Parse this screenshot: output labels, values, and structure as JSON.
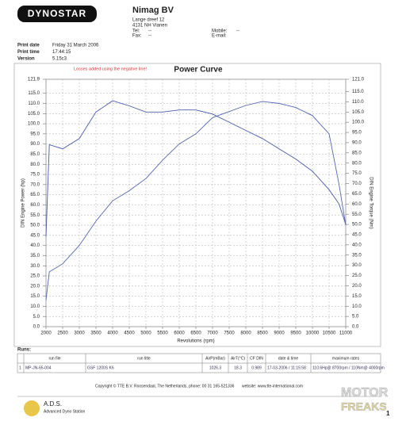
{
  "header": {
    "logo": "DYNOSTAR",
    "company": "Nimag BV",
    "address": [
      "Lange dreef 12",
      "4131 NH Vianen"
    ],
    "tel": "Tel:",
    "tel_value": "--",
    "fax": "Fax:",
    "fax_value": "--",
    "mobile": "Mobile:",
    "mobile_value": "--",
    "email": "E-mail:"
  },
  "print_info": {
    "rows": [
      [
        "Print date",
        "Friday 31 March 2006"
      ],
      [
        "Print time",
        "17:44:15"
      ],
      [
        "Version",
        "5.15c3"
      ]
    ]
  },
  "chart_data": {
    "type": "line",
    "title": "Power Curve",
    "note": "Losses added using the negative line!",
    "x_label": "Revolutions (rpm)",
    "y_label": "DIN Engine Power (hp)",
    "y2_label": "DIN Engine Torque (Nm)",
    "x": [
      2000,
      2100,
      2500,
      3000,
      3500,
      4000,
      4500,
      5000,
      5500,
      6000,
      6500,
      7000,
      7500,
      8000,
      8500,
      9000,
      9500,
      10000,
      10500,
      10800,
      11000
    ],
    "xlim": [
      2000,
      11000
    ],
    "xticks": [
      2000,
      2500,
      3000,
      3500,
      4000,
      4500,
      5000,
      5500,
      6000,
      6500,
      7000,
      7500,
      8000,
      8500,
      9000,
      9500,
      10000,
      10500,
      11000
    ],
    "ylim": [
      0,
      121.9
    ],
    "yticks": [
      {
        "value": 121.9,
        "label": "121.9"
      },
      {
        "value": 115,
        "label": "115.0"
      },
      {
        "value": 110,
        "label": "110.0"
      },
      {
        "value": 105,
        "label": "105.0"
      },
      {
        "value": 100,
        "label": "100.0"
      },
      {
        "value": 95,
        "label": "95.0"
      },
      {
        "value": 90,
        "label": "90.0"
      },
      {
        "value": 85,
        "label": "85.0"
      },
      {
        "value": 80,
        "label": "80.0"
      },
      {
        "value": 75,
        "label": "75.0"
      },
      {
        "value": 70,
        "label": "70.0"
      },
      {
        "value": 65,
        "label": "65.0"
      },
      {
        "value": 60,
        "label": "60.0"
      },
      {
        "value": 55,
        "label": "55.0"
      },
      {
        "value": 50,
        "label": "50.0"
      },
      {
        "value": 45,
        "label": "45.0"
      },
      {
        "value": 40,
        "label": "40.0"
      },
      {
        "value": 35,
        "label": "35.0"
      },
      {
        "value": 30,
        "label": "30.0"
      },
      {
        "value": 25,
        "label": "25.0"
      },
      {
        "value": 20,
        "label": "20.0"
      },
      {
        "value": 15,
        "label": "15.0"
      },
      {
        "value": 10,
        "label": "10.0"
      },
      {
        "value": 5,
        "label": "5.0"
      },
      {
        "value": 0,
        "label": "0.0"
      }
    ],
    "y2lim": [
      0,
      121
    ],
    "y2ticks": [
      {
        "value": 121,
        "label": "121.0"
      },
      {
        "value": 115,
        "label": "115.0"
      },
      {
        "value": 110,
        "label": "110.0"
      },
      {
        "value": 105,
        "label": "105.0"
      },
      {
        "value": 100,
        "label": "100.0"
      },
      {
        "value": 95,
        "label": "95.0"
      },
      {
        "value": 90,
        "label": "90.0"
      },
      {
        "value": 85,
        "label": "85.0"
      },
      {
        "value": 80,
        "label": "80.0"
      },
      {
        "value": 75,
        "label": "75.0"
      },
      {
        "value": 70,
        "label": "70.0"
      },
      {
        "value": 65,
        "label": "65.0"
      },
      {
        "value": 60,
        "label": "60.0"
      },
      {
        "value": 55,
        "label": "55.0"
      },
      {
        "value": 50,
        "label": "50.0"
      },
      {
        "value": 45,
        "label": "45.0"
      },
      {
        "value": 40,
        "label": "40.0"
      },
      {
        "value": 35,
        "label": "35.0"
      },
      {
        "value": 30,
        "label": "30.0"
      },
      {
        "value": 25,
        "label": "25.0"
      },
      {
        "value": 20,
        "label": "20.0"
      },
      {
        "value": 15,
        "label": "15.0"
      },
      {
        "value": 10,
        "label": "10.0"
      },
      {
        "value": 5,
        "label": "5.0"
      },
      {
        "value": 0,
        "label": "0.0"
      }
    ],
    "grid": true,
    "series": [
      {
        "color": "#5566b0",
        "values": [
          13,
          27,
          31,
          40,
          52,
          62,
          67,
          73,
          82,
          90,
          95,
          103,
          106,
          109,
          111,
          110,
          108,
          104,
          95,
          70,
          50
        ]
      },
      {
        "color": "#4a5aa8",
        "axis": "y2",
        "values": [
          44,
          89,
          87,
          92,
          105,
          110.5,
          108,
          105,
          105,
          106,
          106,
          104,
          100,
          96,
          92,
          87,
          82,
          76,
          67,
          60,
          50
        ]
      }
    ]
  },
  "runs": {
    "label": "Runs:",
    "columns": [
      "run file",
      "run title",
      "AirP(mBar)",
      "AirT(°C)",
      "CF DIN",
      "date & time",
      "maximum rates"
    ],
    "rows": [
      [
        "1",
        "MP-JN-65-004",
        "GSF 1200S K6",
        "1026.3",
        "18.3",
        "0.989",
        "17-03-2006 / 11:15:58",
        "110.6Hp@ 8700rpm / 110Nm@ 4000rpm"
      ]
    ]
  },
  "footer": {
    "copyright": "Copyright © TTE B.V. Roosendaal, The Netherlands, phone: 00 31 165-521336",
    "website": "website: www.tte-international.com",
    "ads": "A.D.S.",
    "ads_sub": "Advanced Dyno Station",
    "watermark": [
      "MOTOR",
      "FREAKS"
    ],
    "page": "1"
  }
}
